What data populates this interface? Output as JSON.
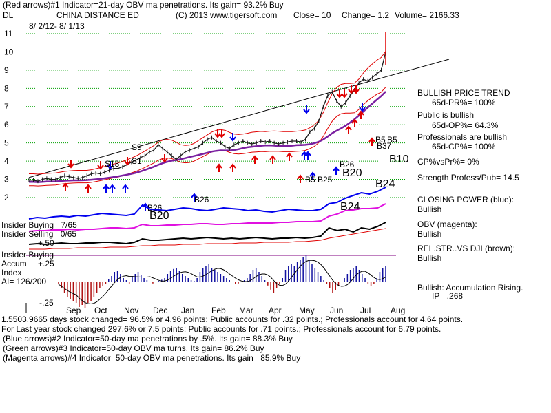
{
  "header": {
    "line1": "(Red arrows)#1 Indicator=21-day OBV ma penetrations. Its gain= 93.2% Buy",
    "ticker": "DL",
    "company": "CHINA DISTANCE ED",
    "copyright": "(C) 2013 www.tigersoft.com",
    "close": "Close=  10",
    "change": "Change= 1.2",
    "volume": "Volume= 2166.33",
    "date_range": "8/ 2/12- 8/ 1/13"
  },
  "right_panel": [
    "BULLISH PRICE TREND",
    "65d-PR%= 100%",
    "Public is bullish",
    "65d-OP%= 64.3%",
    "Professionals are bullish",
    "65d-CP%= 100%",
    "CP%vsPr%=  0%",
    "Strength Profess/Pub= 14.5",
    "CLOSING POWER (blue):",
    "Bullish",
    "OBV (magenta):",
    "Bullish",
    "REL.STR..VS DJI (brown):",
    "Bullish",
    "Bullish: Accumulation Rising.",
    "IP=  .268"
  ],
  "left_panel": {
    "insider_buying": "Insider Buying= 7/65",
    "insider_selling": "Insider Selling= 0/65",
    "insider_buying2": "Insider Buying",
    "accum": "Accum",
    "index": "Index",
    "ai": "AI= 126/200"
  },
  "footer": [
    "1.5503.9665 days stock changed= 96.5% or  4.96 points:  Public accounts for  .32 points.;  Professionals account for  4.64 points.",
    "For Last year stock changed  297.6% or  7.5 points:  Public accounts for  .71 points.;  Professionals account for  6.79 points.",
    "(Blue arrows)#2 Indicator=50-day ma penetrations by .5%. Its gain= 88.3% Buy",
    "(Green arrows)#3 Indicator=50-day OBV ma turns. Its gain= 86.2% Buy",
    "(Magenta arrows)#4 Indicator=50-day OBV ma penetrations. Its gain= 85.9% Buy"
  ],
  "signals": [
    "S9",
    "S18",
    "S1",
    "B26",
    "B20",
    "B26",
    "B5",
    "B25",
    "B26",
    "B20",
    "B24",
    "B5",
    "B5",
    "B37",
    "B10",
    "B24"
  ],
  "colors": {
    "price": "#1a1a1a",
    "ma_red": "#e00000",
    "ma_purple": "#7a1fa0",
    "closing_power": "#0000ee",
    "obv": "#e010e0",
    "relstr": "#000000",
    "accum_pos": "#1010a0",
    "accum_neg": "#b01010",
    "grid": "#00a000",
    "trend": "#000000"
  },
  "chart_data": {
    "type": "line",
    "title": "CHINA DISTANCE ED",
    "x_ticks": [
      "Sep",
      "Oct",
      "Nov",
      "Dec",
      "Jan",
      "Feb",
      "Mar",
      "Apr",
      "May",
      "Jun",
      "Jul",
      "Aug"
    ],
    "y_ticks": [
      2,
      3,
      4,
      5,
      6,
      7,
      8,
      9,
      10,
      11
    ],
    "accum_ticks": [
      "+.50",
      "+.25",
      "-.25"
    ],
    "ylim": [
      1.8,
      11.3
    ],
    "close_last": 10,
    "series": [
      {
        "values": [
          2.95,
          2.95,
          2.9,
          3.0,
          3.05,
          3.0,
          3.0,
          3.1,
          3.2,
          3.15,
          3.1,
          3.05,
          3.1,
          3.2,
          3.3,
          3.35,
          3.3,
          3.4,
          3.5,
          3.6,
          3.6,
          3.7,
          3.8,
          3.95,
          4.05,
          4.2,
          4.3,
          4.5,
          4.6,
          4.9,
          4.7,
          4.5,
          4.3,
          4.1,
          4.3,
          4.5,
          4.6,
          4.7,
          4.8,
          5.0,
          5.2,
          5.3,
          5.1,
          5.0,
          4.8,
          4.7,
          4.9,
          5.0,
          5.1,
          5.0,
          4.95,
          5.0,
          5.1,
          5.05,
          5.1,
          5.0,
          4.95,
          5.0,
          5.05,
          5.1,
          5.1,
          5.05,
          5.2,
          5.6,
          5.8,
          6.2,
          7.0,
          7.6,
          7.8,
          7.3,
          7.0,
          7.2,
          7.6,
          7.9,
          8.3,
          8.5,
          8.4,
          8.6,
          8.8,
          9.0,
          10.0
        ]
      }
    ]
  }
}
